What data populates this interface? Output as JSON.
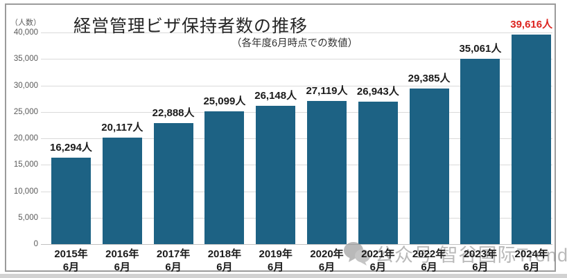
{
  "chart_data": {
    "type": "bar",
    "title": "経営管理ビザ保持者数の推移",
    "subtitle": "（各年度6月時点での数値）",
    "ylabel": "（人数）",
    "xlabel": "",
    "ylim": [
      0,
      40000
    ],
    "ytick_interval": 5000,
    "ytick_labels_top_to_bottom": [
      "40,000",
      "35,000",
      "30,000",
      "25,000",
      "20,000",
      "15,000",
      "10,000",
      "5,000",
      "0"
    ],
    "grid": "horizontal",
    "legend_position": "none",
    "categories": [
      {
        "year": "2015年",
        "month": "6月"
      },
      {
        "year": "2016年",
        "month": "6月"
      },
      {
        "year": "2017年",
        "month": "6月"
      },
      {
        "year": "2018年",
        "month": "6月"
      },
      {
        "year": "2019年",
        "month": "6月"
      },
      {
        "year": "2020年",
        "month": "6月"
      },
      {
        "year": "2021年",
        "month": "6月"
      },
      {
        "year": "2022年",
        "month": "6月"
      },
      {
        "year": "2023年",
        "month": "6月"
      },
      {
        "year": "2024年",
        "month": "6月"
      }
    ],
    "values": [
      16294,
      20117,
      22888,
      25099,
      26148,
      27119,
      26943,
      29385,
      35061,
      39616
    ],
    "value_labels": [
      "16,294人",
      "20,117人",
      "22,888人",
      "25,099人",
      "26,148人",
      "27,119人",
      "26,943人",
      "29,385人",
      "35,061人",
      "39,616人"
    ],
    "highlight_index": 9,
    "colors": {
      "bar": "#1d6284",
      "value_label": "#1a1a1a",
      "highlight_value_label": "#dc241f",
      "gridline": "#d9d9d9",
      "tick_label": "#595959",
      "title": "#262626"
    }
  },
  "watermark": {
    "icon": "chat-bubbles-icon",
    "text": "公众号 智谷国际Trend"
  }
}
